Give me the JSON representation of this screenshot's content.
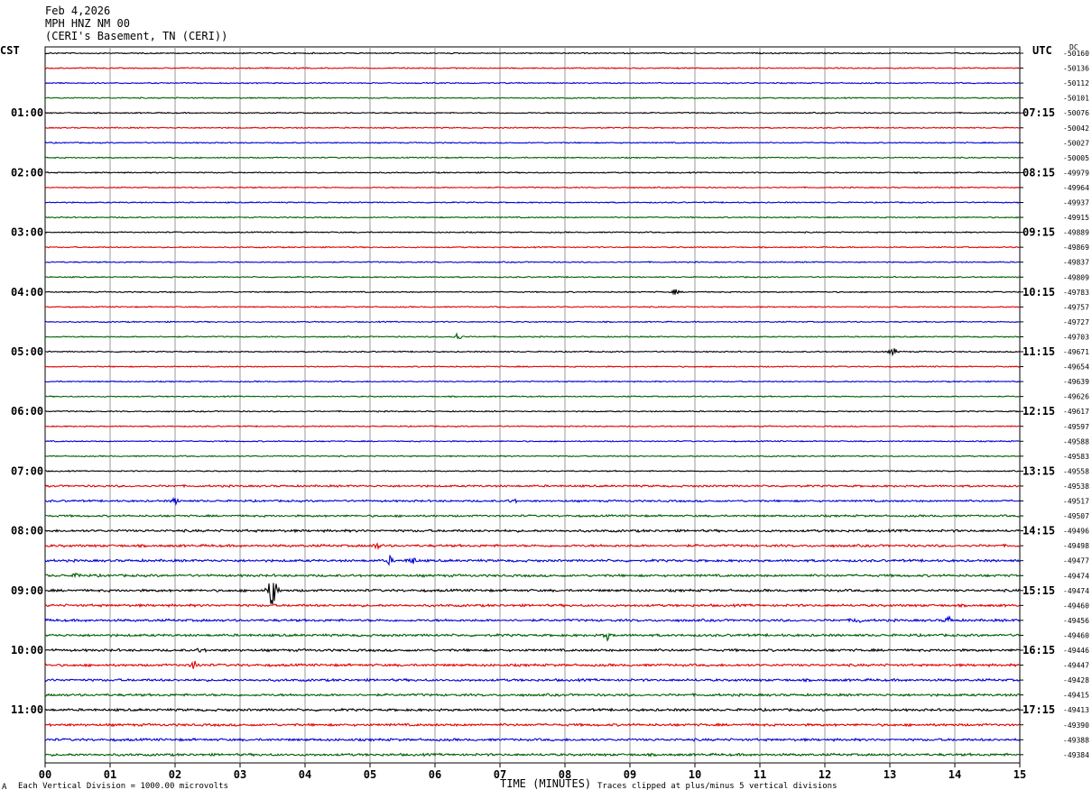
{
  "header": {
    "date": "Feb 4,2026",
    "station": "MPH HNZ NM 00",
    "location": "(CERI's Basement, TN (CERI))"
  },
  "left_timezone": "CST",
  "right_timezone": "UTC",
  "dc_label": "DC",
  "footer": {
    "scale_note": "Each Vertical Division = 1000.00 microvolts",
    "clip_note": "Traces clipped at plus/minus 5 vertical divisions",
    "corner_mark": "A"
  },
  "chart_data": {
    "type": "line",
    "title": "",
    "xlabel": "TIME (MINUTES)",
    "ylabel": "",
    "xlim": [
      0,
      15
    ],
    "x_ticks": [
      "00",
      "01",
      "02",
      "03",
      "04",
      "05",
      "06",
      "07",
      "08",
      "09",
      "10",
      "11",
      "12",
      "13",
      "14",
      "15"
    ],
    "grid": true,
    "trace_colors": [
      "#000000",
      "#e00000",
      "#0000d8",
      "#006000"
    ],
    "left_hour_labels": [
      "01:00",
      "02:00",
      "03:00",
      "04:00",
      "05:00",
      "06:00",
      "07:00",
      "08:00",
      "09:00",
      "10:00",
      "11:00"
    ],
    "right_hour_labels": [
      "07:15",
      "08:15",
      "09:15",
      "10:15",
      "11:15",
      "12:15",
      "13:15",
      "14:15",
      "15:15",
      "16:15",
      "17:15"
    ],
    "dc_offsets": [
      "-50160",
      "-50136",
      "-50112",
      "-50101",
      "-50076",
      "-50042",
      "-50027",
      "-50005",
      "-49979",
      "-49964",
      "-49937",
      "-49915",
      "-49889",
      "-49869",
      "-49837",
      "-49809",
      "-49783",
      "-49757",
      "-49727",
      "-49703",
      "-49671",
      "-49654",
      "-49639",
      "-49626",
      "-49617",
      "-49597",
      "-49588",
      "-49583",
      "-49558",
      "-49538",
      "-49517",
      "-49507",
      "-49496",
      "-49498",
      "-49477",
      "-49474",
      "-49474",
      "-49460",
      "-49456",
      "-49460",
      "-49446",
      "-49447",
      "-49428",
      "-49415",
      "-49413",
      "-49390",
      "-49388",
      "-49384"
    ],
    "events": [
      {
        "trace": 36,
        "minute": 3.5,
        "amplitude": 5.0
      },
      {
        "trace": 19,
        "minute": 6.35,
        "amplitude": 0.8
      },
      {
        "trace": 20,
        "minute": 13.05,
        "amplitude": 0.8
      },
      {
        "trace": 34,
        "minute": 5.65,
        "amplitude": 0.9
      },
      {
        "trace": 34,
        "minute": 5.3,
        "amplitude": 0.7
      },
      {
        "trace": 33,
        "minute": 5.1,
        "amplitude": 0.6
      },
      {
        "trace": 38,
        "minute": 12.5,
        "amplitude": 0.8
      },
      {
        "trace": 38,
        "minute": 13.9,
        "amplitude": 0.7
      },
      {
        "trace": 39,
        "minute": 8.65,
        "amplitude": 0.7
      },
      {
        "trace": 41,
        "minute": 2.3,
        "amplitude": 0.8
      },
      {
        "trace": 40,
        "minute": 2.4,
        "amplitude": 0.5
      },
      {
        "trace": 16,
        "minute": 9.7,
        "amplitude": 0.5
      },
      {
        "trace": 30,
        "minute": 2.0,
        "amplitude": 0.6
      },
      {
        "trace": 30,
        "minute": 7.2,
        "amplitude": 0.5
      },
      {
        "trace": 35,
        "minute": 0.5,
        "amplitude": 0.5
      }
    ]
  }
}
